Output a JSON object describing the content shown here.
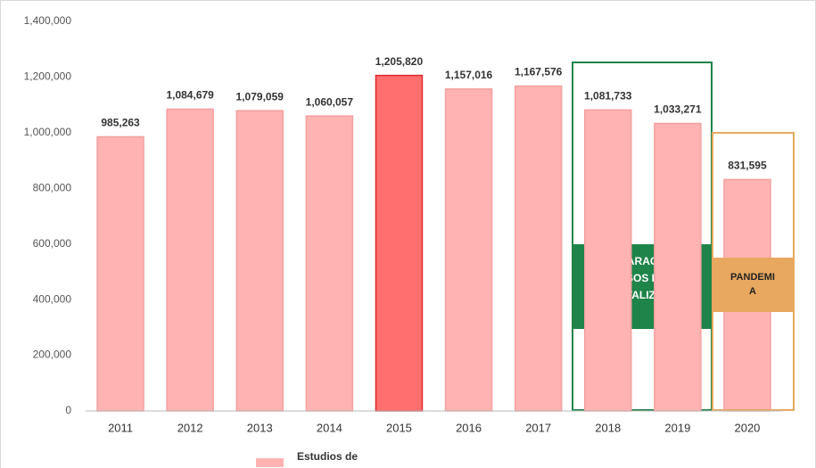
{
  "chart_data": {
    "type": "bar",
    "categories": [
      "2011",
      "2012",
      "2013",
      "2014",
      "2015",
      "2016",
      "2017",
      "2018",
      "2019",
      "2020"
    ],
    "values": [
      985263,
      1084679,
      1079059,
      1060057,
      1205820,
      1157016,
      1167576,
      1081733,
      1033271,
      831595
    ],
    "value_labels": [
      "985,263",
      "1,084,679",
      "1,079,059",
      "1,060,057",
      "1,205,820",
      "1,157,016",
      "1,167,576",
      "1,081,733",
      "1,033,271",
      "831,595"
    ],
    "colors": [
      "#ffb3b3",
      "#ffb3b3",
      "#ffb3b3",
      "#ffb3b3",
      "#ff6f6f",
      "#ffb3b3",
      "#ffb3b3",
      "#ffb3b3",
      "#ffb3b3",
      "#ffb3b3"
    ],
    "edgecolors": [
      "#f4a0a0",
      "#f4a0a0",
      "#f4a0a0",
      "#f4a0a0",
      "#e02828",
      "#f4a0a0",
      "#f4a0a0",
      "#f4a0a0",
      "#f4a0a0",
      "#f4a0a0"
    ],
    "ylim": [
      0,
      1400000
    ],
    "yticks": [
      0,
      {
        "value": 200000,
        "label": "200,000"
      },
      {
        "value": 400000,
        "label": "400,000"
      },
      {
        "value": 600000,
        "label": "600,000"
      },
      {
        "value": 800000,
        "label": "800,000"
      },
      {
        "value": 1000000,
        "label": "1,000,000"
      },
      {
        "value": 1200000,
        "label": "1,200,000"
      },
      {
        "value": 1400000,
        "label": "1,400,000"
      }
    ],
    "grid": false,
    "legend": {
      "name": "Estudios de",
      "color": "#ffb3b3"
    },
    "annotations": [
      {
        "lines": [
          "REPARACIÓN",
          "PISOS DE",
          "HOSPITALIZACIÓN"
        ],
        "color": "#1e8449"
      },
      {
        "lines": [
          "PANDEMI",
          "A"
        ],
        "color": "#e8a860"
      }
    ]
  }
}
